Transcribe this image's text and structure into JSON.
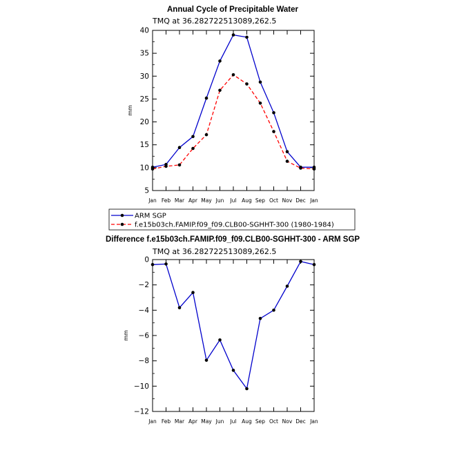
{
  "chart_data": [
    {
      "type": "line",
      "title": "Annual Cycle of Precipitable Water",
      "subtitle": "TMQ at 36.282722513089,262.5",
      "ylabel": "mm",
      "ylim": [
        5,
        40
      ],
      "yticks": [
        5,
        10,
        15,
        20,
        25,
        30,
        35,
        40
      ],
      "categories": [
        "Jan",
        "Feb",
        "Mar",
        "Apr",
        "May",
        "Jun",
        "Jul",
        "Aug",
        "Sep",
        "Oct",
        "Nov",
        "Dec",
        "Jan"
      ],
      "series": [
        {
          "name": "ARM SGP",
          "color": "#0000cc",
          "dash": "solid",
          "values": [
            10.1,
            10.7,
            14.4,
            16.8,
            25.2,
            33.3,
            39.0,
            38.5,
            28.7,
            22.0,
            13.5,
            10.1,
            10.1
          ]
        },
        {
          "name": "f.e15b03ch.FAMIP.f09_f09.CLB00-SGHHT-300 (1980-1984)",
          "color": "#ff0000",
          "dash": "dashed",
          "values": [
            9.7,
            10.3,
            10.6,
            14.2,
            17.2,
            26.9,
            30.3,
            28.3,
            24.1,
            17.9,
            11.4,
            9.9,
            9.7
          ]
        }
      ],
      "legend": "below"
    },
    {
      "type": "line",
      "title": "Difference f.e15b03ch.FAMIP.f09_f09.CLB00-SGHHT-300 - ARM SGP",
      "subtitle": "TMQ at 36.282722513089,262.5",
      "ylabel": "mm",
      "ylim": [
        -12,
        0
      ],
      "yticks": [
        -12,
        -10,
        -8,
        -6,
        -4,
        -2,
        0
      ],
      "categories": [
        "Jan",
        "Feb",
        "Mar",
        "Apr",
        "May",
        "Jun",
        "Jul",
        "Aug",
        "Sep",
        "Oct",
        "Nov",
        "Dec",
        "Jan"
      ],
      "series": [
        {
          "color": "#0000cc",
          "dash": "solid",
          "values": [
            -0.4,
            -0.35,
            -3.8,
            -2.6,
            -7.95,
            -6.35,
            -8.75,
            -10.2,
            -4.65,
            -4.0,
            -2.1,
            -0.15,
            -0.4
          ]
        }
      ]
    }
  ]
}
